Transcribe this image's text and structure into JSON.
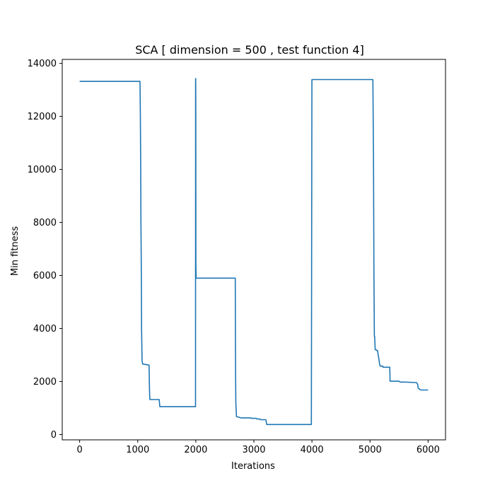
{
  "chart_data": {
    "type": "line",
    "title": "SCA [ dimension = 500 ,  test function 4]",
    "xlabel": "Iterations",
    "ylabel": "Min fitness",
    "xlim": [
      -300,
      6300
    ],
    "ylim": [
      -200,
      14150
    ],
    "x_ticks": [
      0,
      1000,
      2000,
      3000,
      4000,
      5000,
      6000
    ],
    "y_ticks": [
      0,
      2000,
      4000,
      6000,
      8000,
      10000,
      12000,
      14000
    ],
    "x_tick_labels": [
      "0",
      "1000",
      "2000",
      "3000",
      "4000",
      "5000",
      "6000"
    ],
    "y_tick_labels": [
      "0",
      "2000",
      "4000",
      "6000",
      "8000",
      "10000",
      "12000",
      "14000"
    ],
    "grid": false,
    "legend": "none",
    "series": [
      {
        "color": "#1f77b4",
        "x": [
          0,
          1040,
          1045,
          1052,
          1055,
          1063,
          1066,
          1075,
          1085,
          1110,
          1195,
          1200,
          1205,
          1210,
          1370,
          1380,
          1995,
          1996,
          1998,
          1999,
          2000,
          2001,
          2005,
          2680,
          2685,
          2690,
          2700,
          2745,
          2775,
          2950,
          2960,
          3040,
          3050,
          3100,
          3110,
          3200,
          3210,
          3220,
          3240,
          3990,
          4000,
          5000,
          5050,
          5060,
          5068,
          5075,
          5080,
          5090,
          5100,
          5120,
          5130,
          5170,
          5175,
          5180,
          5220,
          5225,
          5240,
          5340,
          5345,
          5350,
          5500,
          5520,
          5600,
          5800,
          5820,
          5830,
          5860,
          5870,
          5880,
          6000
        ],
        "y": [
          13320,
          13320,
          12000,
          10000,
          8000,
          6000,
          4000,
          2800,
          2660,
          2650,
          2620,
          2000,
          1500,
          1320,
          1320,
          1050,
          1050,
          13400,
          13430,
          13000,
          12000,
          6500,
          5900,
          5900,
          2500,
          1200,
          680,
          650,
          630,
          630,
          610,
          610,
          590,
          590,
          560,
          560,
          545,
          380,
          380,
          380,
          13390,
          13390,
          13390,
          10300,
          6000,
          3700,
          3700,
          3200,
          3200,
          3170,
          3170,
          2600,
          2600,
          2580,
          2580,
          2540,
          2540,
          2540,
          2020,
          2010,
          2010,
          1980,
          1980,
          1960,
          1900,
          1750,
          1700,
          1680,
          1680,
          1680
        ]
      }
    ]
  }
}
